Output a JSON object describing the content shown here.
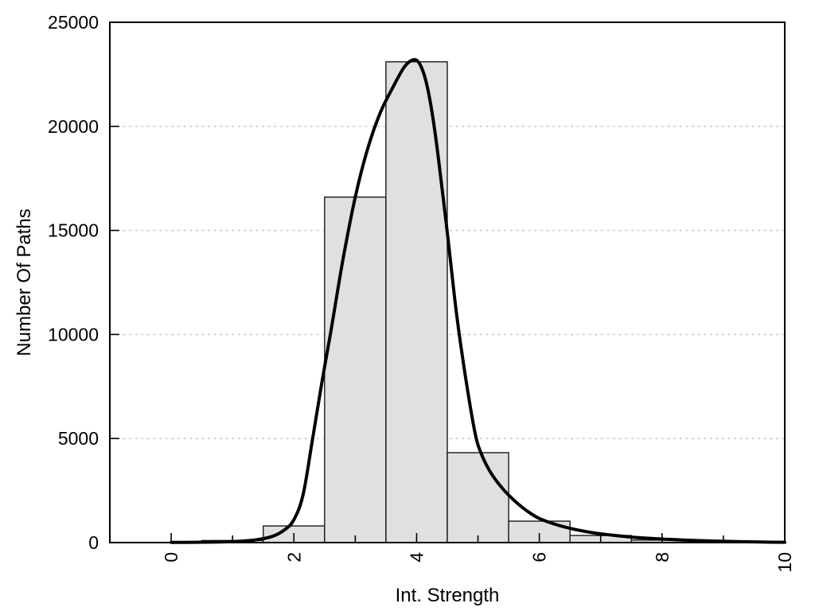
{
  "chart_data": {
    "type": "bar",
    "subtype": "histogram-with-density-curve",
    "title": "",
    "xlabel": "Int. Strength",
    "ylabel": "Number Of Paths",
    "xlim": [
      -1,
      10
    ],
    "ylim": [
      0,
      25000
    ],
    "x_major_ticks": [
      0,
      2,
      4,
      6,
      8,
      10
    ],
    "x_major_tick_labels": [
      "0",
      "2",
      "4",
      "6",
      "8",
      "10"
    ],
    "x_minor_ticks": [
      1,
      3,
      5,
      7,
      9
    ],
    "y_ticks": [
      0,
      5000,
      10000,
      15000,
      20000,
      25000
    ],
    "y_tick_labels": [
      "0",
      "5000",
      "10000",
      "15000",
      "20000",
      "25000"
    ],
    "grid_y_values": [
      5000,
      10000,
      15000,
      20000
    ],
    "grid_on": true,
    "legend": "none",
    "bars": {
      "bin_width": 1,
      "centers": [
        1,
        2,
        3,
        4,
        5,
        6,
        7,
        8
      ],
      "values": [
        100,
        800,
        16600,
        23100,
        4320,
        1030,
        340,
        120
      ]
    },
    "series": [
      {
        "name": "density-curve",
        "type": "line",
        "points": [
          [
            0.0,
            8
          ],
          [
            0.4,
            14
          ],
          [
            0.8,
            30
          ],
          [
            1.1,
            60
          ],
          [
            1.4,
            140
          ],
          [
            1.65,
            300
          ],
          [
            1.85,
            620
          ],
          [
            2.0,
            1100
          ],
          [
            2.15,
            2300
          ],
          [
            2.3,
            4900
          ],
          [
            2.45,
            7600
          ],
          [
            2.6,
            10100
          ],
          [
            2.8,
            13600
          ],
          [
            3.0,
            16600
          ],
          [
            3.2,
            18900
          ],
          [
            3.4,
            20600
          ],
          [
            3.6,
            21800
          ],
          [
            3.8,
            22850
          ],
          [
            3.95,
            23200
          ],
          [
            4.05,
            23000
          ],
          [
            4.15,
            22200
          ],
          [
            4.25,
            20700
          ],
          [
            4.35,
            18600
          ],
          [
            4.5,
            14900
          ],
          [
            4.65,
            11000
          ],
          [
            4.8,
            7900
          ],
          [
            4.95,
            5300
          ],
          [
            5.05,
            4300
          ],
          [
            5.2,
            3400
          ],
          [
            5.4,
            2600
          ],
          [
            5.6,
            2000
          ],
          [
            5.8,
            1520
          ],
          [
            6.0,
            1160
          ],
          [
            6.3,
            840
          ],
          [
            6.6,
            620
          ],
          [
            6.9,
            460
          ],
          [
            7.2,
            350
          ],
          [
            7.5,
            265
          ],
          [
            7.8,
            205
          ],
          [
            8.1,
            155
          ],
          [
            8.4,
            115
          ],
          [
            8.7,
            85
          ],
          [
            9.0,
            60
          ],
          [
            9.3,
            42
          ],
          [
            9.6,
            28
          ],
          [
            10.0,
            15
          ]
        ]
      }
    ],
    "colors": {
      "background": "#ffffff",
      "bar_fill": "#e0e0e0",
      "bar_stroke": "#1a1a1a",
      "curve": "#000000",
      "grid": "#c8c8c8",
      "axis": "#000000",
      "text": "#000000"
    }
  }
}
